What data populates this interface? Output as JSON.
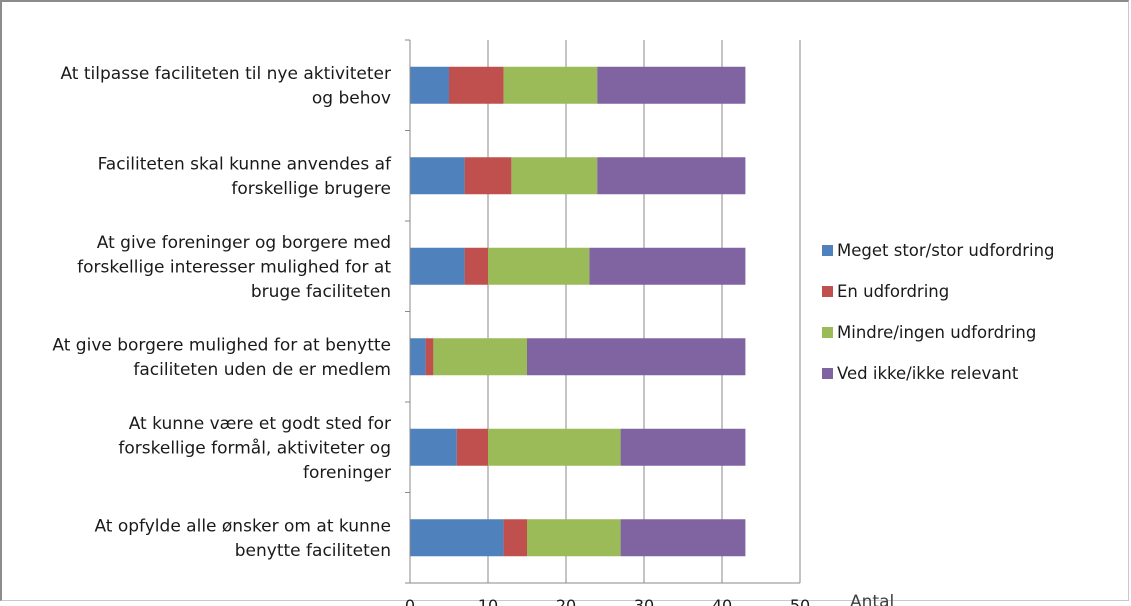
{
  "chart_data": {
    "type": "bar",
    "orientation": "horizontal",
    "stacked": true,
    "xlabel": "Antal",
    "ylabel": "",
    "xlim": [
      0,
      50
    ],
    "x_ticks": [
      "0",
      "10",
      "20",
      "30",
      "40",
      "50"
    ],
    "grid": "vertical gridlines",
    "legend_position": "right",
    "categories": [
      [
        "At tilpasse faciliteten til nye aktiviteter",
        "og behov"
      ],
      [
        "Faciliteten skal kunne anvendes af",
        "forskellige brugere"
      ],
      [
        "At give foreninger og borgere med",
        "forskellige interesser mulighed for at",
        "bruge faciliteten"
      ],
      [
        "At give borgere mulighed for at benytte",
        "faciliteten uden de er medlem"
      ],
      [
        "At kunne være et godt sted for",
        "forskellige formål, aktiviteter og",
        "foreninger"
      ],
      [
        "At opfylde alle ønsker om at kunne",
        "benytte faciliteten"
      ]
    ],
    "series": [
      {
        "name": "Meget stor/stor udfordring",
        "color": "#4f81bd",
        "values": [
          5,
          7,
          7,
          2,
          6,
          12
        ]
      },
      {
        "name": "En udfordring",
        "color": "#c0504d",
        "values": [
          7,
          6,
          3,
          1,
          4,
          3
        ]
      },
      {
        "name": "Mindre/ingen udfordring",
        "color": "#9bbb59",
        "values": [
          12,
          11,
          13,
          12,
          17,
          12
        ]
      },
      {
        "name": "Ved ikke/ikke relevant",
        "color": "#8064a2",
        "values": [
          19,
          19,
          20,
          28,
          16,
          16
        ]
      }
    ]
  }
}
